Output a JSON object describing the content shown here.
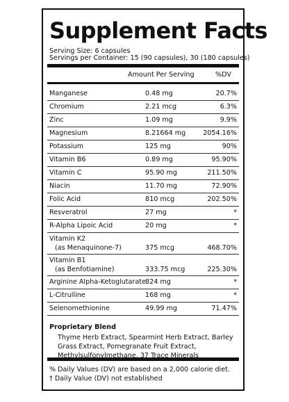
{
  "label": {
    "title": "Supplement Facts",
    "serving_size": "Serving Size: 6 capsules",
    "servings_per_container": "Servings per Container: 15 (90 capsules), 30 (180 capsules)",
    "columns": {
      "amount": "Amount Per Serving",
      "dv": "%DV"
    },
    "rows": [
      {
        "name": "Manganese",
        "amount": "0.48 mg",
        "dv": "20.7%"
      },
      {
        "name": "Chromium",
        "amount": "2.21 mcg",
        "dv": "6.3%"
      },
      {
        "name": "Zinc",
        "amount": "1.09 mg",
        "dv": "9.9%"
      },
      {
        "name": "Magnesium",
        "amount": "8.21664 mg",
        "dv": "2054.16%"
      },
      {
        "name": "Potassium",
        "amount": "125 mg",
        "dv": "90%"
      },
      {
        "name": "Vitamin B6",
        "amount": "0.89 mg",
        "dv": "95.90%"
      },
      {
        "name": "Vitamin C",
        "amount": "95.90 mg",
        "dv": "211.50%"
      },
      {
        "name": "Niacin",
        "amount": "11.70 mg",
        "dv": "72.90%"
      },
      {
        "name": "Folic Acid",
        "amount": "810 mcg",
        "dv": "202.50%"
      },
      {
        "name": "Resveratrol",
        "amount": "27 mg",
        "dv": "*"
      },
      {
        "name": "R-Alpha Lipoic Acid",
        "amount": "20 mg",
        "dv": "*"
      },
      {
        "name": "Vitamin K2",
        "sub": "(as Menaquinone-7)",
        "amount": "375 mcg",
        "dv": "468.70%"
      },
      {
        "name": "Vitamin B1",
        "sub": "(as Benfotiamine)",
        "amount": "333.75 mcg",
        "dv": "225.30%"
      },
      {
        "name": "Arginine Alpha-Ketoglutarate",
        "amount": "824 mg",
        "dv": "*"
      },
      {
        "name": "L-Citrulline",
        "amount": "168 mg",
        "dv": "*"
      },
      {
        "name": "Selenomethionine",
        "amount": "49.99 mg",
        "dv": "71.47%"
      }
    ],
    "blend": {
      "title": "Proprietary Blend",
      "ingredients": "Thyme Herb Extract, Spearmint Herb Extract, Barley Grass Extract, Pomegranate Fruit Extract, Methylsulfonylmethane, 37 Trace Minerals"
    },
    "footnotes": [
      "% Daily Values (DV) are based on a 2,000 calorie diet.",
      "† Daily Value (DV) not established"
    ]
  }
}
